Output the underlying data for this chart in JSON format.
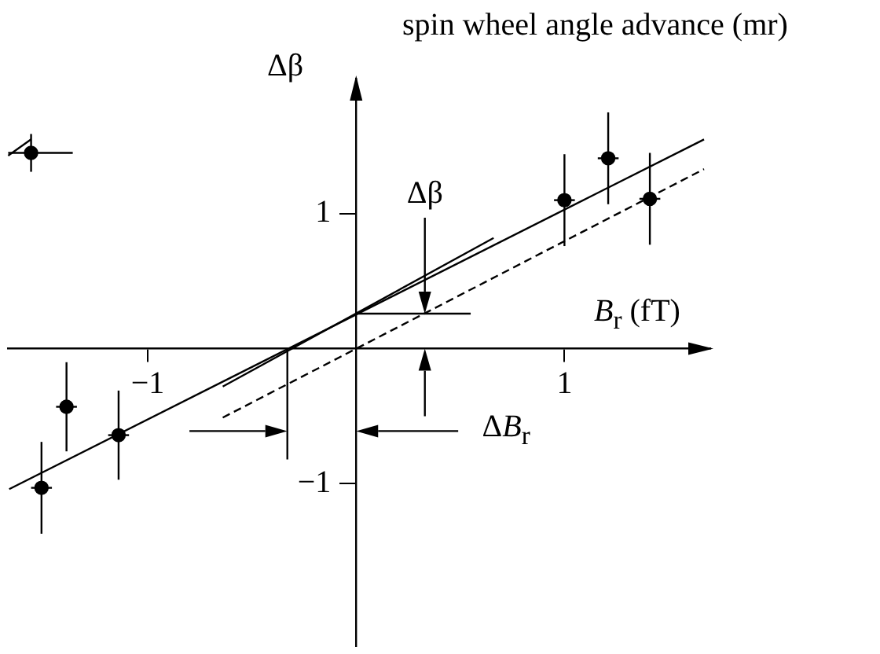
{
  "chart_data": {
    "type": "scatter",
    "title": "spin wheel angle advance (mr)",
    "xlabel": "B$_{r}$ (fT)",
    "ylabel": "Δβ",
    "xlim": [
      -1.67,
      1.7
    ],
    "ylim": [
      -2.2,
      2.0
    ],
    "xticks": [
      {
        "value": -1,
        "label": "−1"
      },
      1
    ],
    "yticks": [
      {
        "value": -1,
        "label": "−1"
      },
      1
    ],
    "grid": false,
    "legend": false,
    "marker": "circle",
    "annotations": [
      "Δβ",
      "ΔB$_{r}$"
    ],
    "series": [
      {
        "color": "#000000",
        "x": [
          -1.56,
          -1.39,
          -1.51,
          -1.14,
          1.0,
          1.21,
          1.41
        ],
        "values": [
          1.45,
          -0.43,
          -1.03,
          -0.64,
          1.1,
          1.41,
          1.11
        ],
        "errors": [
          0.14,
          0.33,
          0.34,
          0.33,
          0.34,
          0.34,
          0.34
        ],
        "xerrors": [
          [
            -1.67,
            -1.36
          ],
          0.05,
          0.05,
          0.05,
          0.05,
          0.05,
          0.05
        ]
      },
      {
        "type": "line",
        "color": "#000000",
        "marker": "none",
        "line_style": "solid",
        "x": [
          -1.665,
          1.67
        ],
        "values": [
          -1.04,
          1.55
        ]
      },
      {
        "type": "line",
        "color": "#000000",
        "marker": "none",
        "line_style": "solid",
        "x": [
          -0.64,
          0.66
        ],
        "values": [
          -0.28,
          0.82
        ]
      },
      {
        "type": "line",
        "color": "#000000",
        "marker": "none",
        "line_style": "dashed",
        "x": [
          -0.64,
          1.67
        ],
        "values": [
          -0.51,
          1.33
        ]
      }
    ]
  }
}
